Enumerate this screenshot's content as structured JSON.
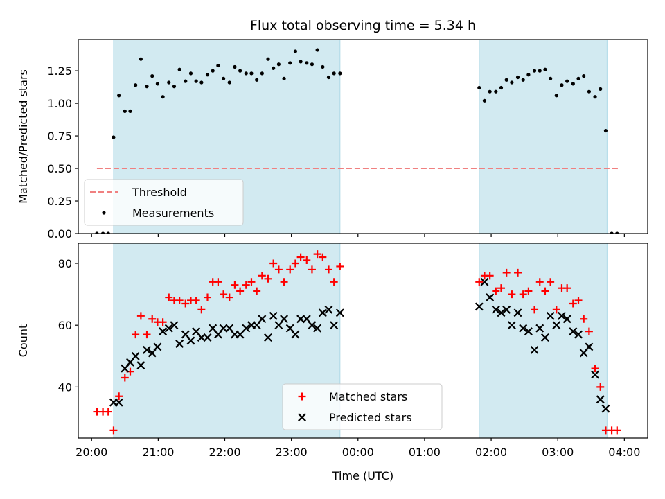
{
  "chart_data": [
    {
      "type": "scatter",
      "title": "Flux total observing time = 5.34 h",
      "ylabel": "Matched/Predicted stars",
      "xlabel": "",
      "xlim": [
        -0.2,
        8.35
      ],
      "ylim": [
        0.0,
        1.49
      ],
      "yticks": [
        0.0,
        0.25,
        0.5,
        0.75,
        1.0,
        1.25
      ],
      "ytick_labels": [
        "0.00",
        "0.25",
        "0.50",
        "0.75",
        "1.00",
        "1.25"
      ],
      "shaded_intervals": [
        [
          0.33,
          3.73
        ],
        [
          5.82,
          7.74
        ]
      ],
      "legend_position": "lower-left",
      "threshold": {
        "name": "Threshold",
        "value": 0.5,
        "x_range": [
          0.08,
          7.93
        ],
        "color": "#f08080"
      },
      "series": [
        {
          "name": "Measurements",
          "marker": "dot",
          "color": "#000000",
          "points": [
            [
              0.08,
              0.0
            ],
            [
              0.17,
              0.0
            ],
            [
              0.25,
              0.0
            ],
            [
              0.33,
              0.74
            ],
            [
              0.41,
              1.06
            ],
            [
              0.5,
              0.94
            ],
            [
              0.58,
              0.94
            ],
            [
              0.66,
              1.14
            ],
            [
              0.74,
              1.34
            ],
            [
              0.83,
              1.13
            ],
            [
              0.91,
              1.21
            ],
            [
              0.99,
              1.15
            ],
            [
              1.07,
              1.05
            ],
            [
              1.16,
              1.16
            ],
            [
              1.24,
              1.13
            ],
            [
              1.32,
              1.26
            ],
            [
              1.41,
              1.17
            ],
            [
              1.49,
              1.23
            ],
            [
              1.57,
              1.17
            ],
            [
              1.65,
              1.16
            ],
            [
              1.74,
              1.22
            ],
            [
              1.82,
              1.25
            ],
            [
              1.9,
              1.29
            ],
            [
              1.98,
              1.19
            ],
            [
              2.07,
              1.16
            ],
            [
              2.15,
              1.28
            ],
            [
              2.23,
              1.25
            ],
            [
              2.32,
              1.23
            ],
            [
              2.4,
              1.23
            ],
            [
              2.48,
              1.18
            ],
            [
              2.56,
              1.23
            ],
            [
              2.65,
              1.34
            ],
            [
              2.73,
              1.27
            ],
            [
              2.81,
              1.3
            ],
            [
              2.89,
              1.19
            ],
            [
              2.98,
              1.31
            ],
            [
              3.06,
              1.4
            ],
            [
              3.14,
              1.32
            ],
            [
              3.23,
              1.31
            ],
            [
              3.31,
              1.3
            ],
            [
              3.39,
              1.41
            ],
            [
              3.47,
              1.28
            ],
            [
              3.56,
              1.2
            ],
            [
              3.64,
              1.23
            ],
            [
              3.73,
              1.23
            ],
            [
              5.82,
              1.12
            ],
            [
              5.9,
              1.02
            ],
            [
              5.98,
              1.09
            ],
            [
              6.07,
              1.09
            ],
            [
              6.15,
              1.12
            ],
            [
              6.23,
              1.18
            ],
            [
              6.31,
              1.16
            ],
            [
              6.4,
              1.2
            ],
            [
              6.48,
              1.18
            ],
            [
              6.56,
              1.22
            ],
            [
              6.65,
              1.25
            ],
            [
              6.73,
              1.25
            ],
            [
              6.81,
              1.26
            ],
            [
              6.89,
              1.19
            ],
            [
              6.98,
              1.06
            ],
            [
              7.06,
              1.14
            ],
            [
              7.14,
              1.17
            ],
            [
              7.23,
              1.15
            ],
            [
              7.31,
              1.19
            ],
            [
              7.39,
              1.21
            ],
            [
              7.47,
              1.09
            ],
            [
              7.56,
              1.05
            ],
            [
              7.64,
              1.11
            ],
            [
              7.72,
              0.79
            ],
            [
              7.81,
              0.0
            ],
            [
              7.89,
              0.0
            ]
          ]
        }
      ]
    },
    {
      "type": "scatter",
      "title": "",
      "ylabel": "Count",
      "xlabel": "Time (UTC)",
      "xlim": [
        -0.2,
        8.35
      ],
      "ylim": [
        23.5,
        86.5
      ],
      "yticks": [
        40,
        60,
        80
      ],
      "ytick_labels": [
        "40",
        "60",
        "80"
      ],
      "xticks": [
        0,
        1,
        2,
        3,
        4,
        5,
        6,
        7,
        8
      ],
      "xtick_labels": [
        "20:00",
        "21:00",
        "22:00",
        "23:00",
        "00:00",
        "01:00",
        "02:00",
        "03:00",
        "04:00"
      ],
      "shaded_intervals": [
        [
          0.33,
          3.73
        ],
        [
          5.82,
          7.74
        ]
      ],
      "legend_position": "lower-center",
      "series": [
        {
          "name": "Matched stars",
          "marker": "plus",
          "color": "#ff0000",
          "points": [
            [
              0.08,
              32
            ],
            [
              0.17,
              32
            ],
            [
              0.25,
              32
            ],
            [
              0.33,
              26
            ],
            [
              0.41,
              37
            ],
            [
              0.5,
              43
            ],
            [
              0.58,
              45
            ],
            [
              0.66,
              57
            ],
            [
              0.74,
              63
            ],
            [
              0.83,
              57
            ],
            [
              0.91,
              62
            ],
            [
              0.99,
              61
            ],
            [
              1.07,
              61
            ],
            [
              1.16,
              69
            ],
            [
              1.24,
              68
            ],
            [
              1.32,
              68
            ],
            [
              1.41,
              67
            ],
            [
              1.49,
              68
            ],
            [
              1.57,
              68
            ],
            [
              1.65,
              65
            ],
            [
              1.74,
              69
            ],
            [
              1.82,
              74
            ],
            [
              1.9,
              74
            ],
            [
              1.98,
              70
            ],
            [
              2.07,
              69
            ],
            [
              2.15,
              73
            ],
            [
              2.23,
              71
            ],
            [
              2.32,
              73
            ],
            [
              2.4,
              74
            ],
            [
              2.48,
              71
            ],
            [
              2.56,
              76
            ],
            [
              2.65,
              75
            ],
            [
              2.73,
              80
            ],
            [
              2.81,
              78
            ],
            [
              2.89,
              74
            ],
            [
              2.98,
              78
            ],
            [
              3.06,
              80
            ],
            [
              3.14,
              82
            ],
            [
              3.23,
              81
            ],
            [
              3.31,
              78
            ],
            [
              3.39,
              83
            ],
            [
              3.47,
              82
            ],
            [
              3.56,
              78
            ],
            [
              3.64,
              74
            ],
            [
              3.73,
              79
            ],
            [
              5.82,
              74
            ],
            [
              5.9,
              76
            ],
            [
              5.98,
              76
            ],
            [
              6.07,
              71
            ],
            [
              6.15,
              72
            ],
            [
              6.23,
              77
            ],
            [
              6.31,
              70
            ],
            [
              6.4,
              77
            ],
            [
              6.48,
              70
            ],
            [
              6.56,
              71
            ],
            [
              6.65,
              65
            ],
            [
              6.73,
              74
            ],
            [
              6.81,
              71
            ],
            [
              6.89,
              74
            ],
            [
              6.98,
              65
            ],
            [
              7.06,
              72
            ],
            [
              7.14,
              72
            ],
            [
              7.23,
              67
            ],
            [
              7.31,
              68
            ],
            [
              7.39,
              62
            ],
            [
              7.47,
              58
            ],
            [
              7.56,
              46
            ],
            [
              7.64,
              40
            ],
            [
              7.72,
              26
            ],
            [
              7.81,
              26
            ],
            [
              7.89,
              26
            ]
          ]
        },
        {
          "name": "Predicted stars",
          "marker": "x",
          "color": "#000000",
          "points": [
            [
              0.33,
              35
            ],
            [
              0.41,
              35
            ],
            [
              0.5,
              46
            ],
            [
              0.58,
              48
            ],
            [
              0.66,
              50
            ],
            [
              0.74,
              47
            ],
            [
              0.83,
              52
            ],
            [
              0.91,
              51
            ],
            [
              0.99,
              53
            ],
            [
              1.07,
              58
            ],
            [
              1.16,
              59
            ],
            [
              1.24,
              60
            ],
            [
              1.32,
              54
            ],
            [
              1.41,
              57
            ],
            [
              1.49,
              55
            ],
            [
              1.57,
              58
            ],
            [
              1.65,
              56
            ],
            [
              1.74,
              56
            ],
            [
              1.82,
              59
            ],
            [
              1.9,
              57
            ],
            [
              1.98,
              59
            ],
            [
              2.07,
              59
            ],
            [
              2.15,
              57
            ],
            [
              2.23,
              57
            ],
            [
              2.32,
              59
            ],
            [
              2.4,
              60
            ],
            [
              2.48,
              60
            ],
            [
              2.56,
              62
            ],
            [
              2.65,
              56
            ],
            [
              2.73,
              63
            ],
            [
              2.81,
              60
            ],
            [
              2.89,
              62
            ],
            [
              2.98,
              59
            ],
            [
              3.06,
              57
            ],
            [
              3.14,
              62
            ],
            [
              3.23,
              62
            ],
            [
              3.31,
              60
            ],
            [
              3.39,
              59
            ],
            [
              3.47,
              64
            ],
            [
              3.56,
              65
            ],
            [
              3.64,
              60
            ],
            [
              3.73,
              64
            ],
            [
              5.82,
              66
            ],
            [
              5.9,
              74
            ],
            [
              5.98,
              69
            ],
            [
              6.07,
              65
            ],
            [
              6.15,
              64
            ],
            [
              6.23,
              65
            ],
            [
              6.31,
              60
            ],
            [
              6.4,
              64
            ],
            [
              6.48,
              59
            ],
            [
              6.56,
              58
            ],
            [
              6.65,
              52
            ],
            [
              6.73,
              59
            ],
            [
              6.81,
              56
            ],
            [
              6.89,
              63
            ],
            [
              6.98,
              60
            ],
            [
              7.06,
              63
            ],
            [
              7.14,
              62
            ],
            [
              7.23,
              58
            ],
            [
              7.31,
              57
            ],
            [
              7.39,
              51
            ],
            [
              7.47,
              53
            ],
            [
              7.56,
              44
            ],
            [
              7.64,
              36
            ],
            [
              7.72,
              33
            ]
          ]
        }
      ]
    }
  ],
  "colors": {
    "shade": "#add8e6",
    "axis": "#000000"
  }
}
